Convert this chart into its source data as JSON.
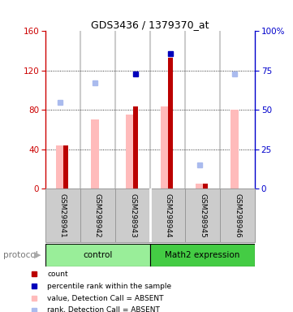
{
  "title": "GDS3436 / 1379370_at",
  "samples": [
    "GSM298941",
    "GSM298942",
    "GSM298943",
    "GSM298944",
    "GSM298945",
    "GSM298946"
  ],
  "groups": [
    {
      "name": "control",
      "color": "#99ee99",
      "indices": [
        0,
        1,
        2
      ]
    },
    {
      "name": "Math2 expression",
      "color": "#44cc44",
      "indices": [
        3,
        4,
        5
      ]
    }
  ],
  "left_ylim": [
    0,
    160
  ],
  "left_yticks": [
    0,
    40,
    80,
    120,
    160
  ],
  "right_ylim": [
    0,
    100
  ],
  "right_yticks": [
    0,
    25,
    50,
    75,
    100
  ],
  "right_yticklabels": [
    "0",
    "25",
    "50",
    "75",
    "100%"
  ],
  "count_values": [
    44,
    0,
    84,
    133,
    5,
    0
  ],
  "count_color": "#bb0000",
  "value_absent": [
    44,
    70,
    75,
    84,
    5,
    80
  ],
  "value_absent_color": "#ffbbbb",
  "rank_absent_values": [
    55,
    67,
    73,
    86,
    15,
    73
  ],
  "rank_absent_color": "#aabbee",
  "percentile_rank_present": [
    null,
    null,
    73,
    86,
    null,
    null
  ],
  "percentile_rank_color": "#0000bb",
  "detection_present": [
    false,
    false,
    true,
    true,
    false,
    false
  ],
  "left_axis_color": "#cc0000",
  "right_axis_color": "#0000cc",
  "sample_bg_color": "#cccccc",
  "sample_label_bg_color": "#cccccc",
  "plot_bg_color": "#ffffff",
  "legend_items": [
    {
      "label": "count",
      "color": "#bb0000"
    },
    {
      "label": "percentile rank within the sample",
      "color": "#0000bb"
    },
    {
      "label": "value, Detection Call = ABSENT",
      "color": "#ffbbbb"
    },
    {
      "label": "rank, Detection Call = ABSENT",
      "color": "#aabbee"
    }
  ]
}
